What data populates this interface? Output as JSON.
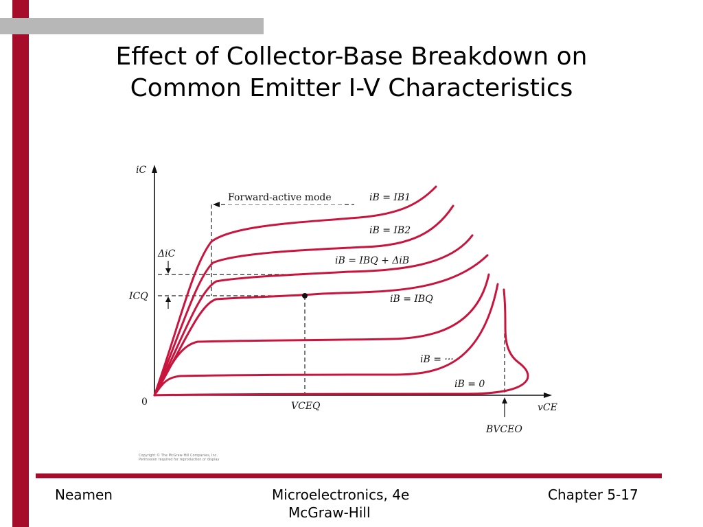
{
  "slide": {
    "title_line1": "Effect of Collector-Base Breakdown on",
    "title_line2": "Common Emitter I-V Characteristics"
  },
  "diagram": {
    "y_axis_label": "iC",
    "x_axis_label": "vCE",
    "origin_label": "0",
    "mode_label": "Forward-active mode",
    "delta_ic_label": "ΔiC",
    "icq_label": "ICQ",
    "vceq_label": "VCEQ",
    "bvceo_label": "BVCEO",
    "curve_labels": [
      "iB = IB1",
      "iB = IB2",
      "iB = IBQ + ΔiB",
      "iB = IBQ",
      "iB = ···",
      "iB = 0"
    ],
    "copyright_line1": "Copyright © The McGraw-Hill Companies, Inc.",
    "copyright_line2": "Permission required for reproduction or display",
    "colors": {
      "curve": "#c8153d",
      "axis": "#111111"
    }
  },
  "footer": {
    "left": "Neamen",
    "center_line1": "Microelectronics, 4e",
    "center_line2": "McGraw-Hill",
    "right": "Chapter 5-17"
  },
  "theme": {
    "accent": "#a50d2b",
    "gray_bar": "#b7b7b7"
  }
}
